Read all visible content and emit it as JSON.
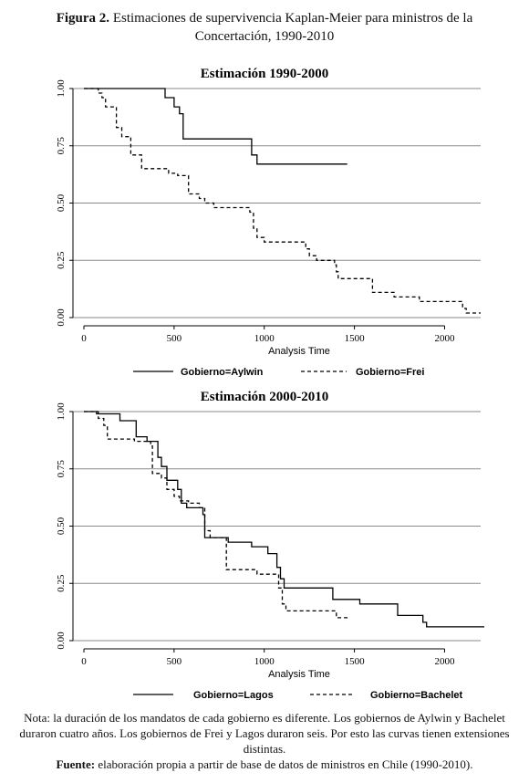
{
  "figure": {
    "label": "Figura 2.",
    "caption": "Estimaciones de supervivencia Kaplan-Meier para ministros de la Concertación, 1990-2010"
  },
  "notes": {
    "nota": "Nota: la duración de los mandatos de cada gobierno es diferente. Los gobiernos de Aylwin y Bachelet duraron cuatro años. Los gobiernos de Frei y Lagos duraron seis. Por esto las curvas tienen extensiones distintas.",
    "fuente_label": "Fuente:",
    "fuente_text": "elaboración propia a partir de base de datos de ministros en Chile (1990-2010)."
  },
  "chart_data": [
    {
      "type": "line",
      "step": true,
      "title": "Estimación 1990-2000",
      "xlabel": "Analysis Time",
      "ylabel": "",
      "xlim": [
        0,
        2200
      ],
      "ylim": [
        0,
        1
      ],
      "xticks": [
        "0",
        "500",
        "1000",
        "1500",
        "2000"
      ],
      "yticks": [
        "0.00",
        "0.25",
        "0.50",
        "0.75",
        "1.00"
      ],
      "grid": true,
      "legend": "bottom",
      "series": [
        {
          "name": "Gobierno=Aylwin",
          "style": "solid",
          "points": [
            [
              0,
              1.0
            ],
            [
              450,
              1.0
            ],
            [
              450,
              0.96
            ],
            [
              500,
              0.96
            ],
            [
              500,
              0.92
            ],
            [
              530,
              0.92
            ],
            [
              530,
              0.89
            ],
            [
              550,
              0.89
            ],
            [
              550,
              0.78
            ],
            [
              930,
              0.78
            ],
            [
              930,
              0.71
            ],
            [
              960,
              0.71
            ],
            [
              960,
              0.67
            ],
            [
              1460,
              0.67
            ]
          ]
        },
        {
          "name": "Gobierno=Frei",
          "style": "dashed",
          "points": [
            [
              0,
              1.0
            ],
            [
              80,
              1.0
            ],
            [
              80,
              0.98
            ],
            [
              100,
              0.98
            ],
            [
              100,
              0.96
            ],
            [
              120,
              0.96
            ],
            [
              120,
              0.92
            ],
            [
              180,
              0.92
            ],
            [
              180,
              0.83
            ],
            [
              210,
              0.83
            ],
            [
              210,
              0.79
            ],
            [
              260,
              0.79
            ],
            [
              260,
              0.71
            ],
            [
              320,
              0.71
            ],
            [
              320,
              0.65
            ],
            [
              470,
              0.65
            ],
            [
              470,
              0.63
            ],
            [
              520,
              0.63
            ],
            [
              520,
              0.62
            ],
            [
              580,
              0.62
            ],
            [
              580,
              0.54
            ],
            [
              640,
              0.54
            ],
            [
              640,
              0.52
            ],
            [
              670,
              0.52
            ],
            [
              670,
              0.5
            ],
            [
              720,
              0.5
            ],
            [
              720,
              0.48
            ],
            [
              920,
              0.48
            ],
            [
              920,
              0.46
            ],
            [
              940,
              0.46
            ],
            [
              940,
              0.39
            ],
            [
              960,
              0.39
            ],
            [
              960,
              0.35
            ],
            [
              1000,
              0.35
            ],
            [
              1000,
              0.33
            ],
            [
              1230,
              0.33
            ],
            [
              1230,
              0.3
            ],
            [
              1250,
              0.3
            ],
            [
              1250,
              0.27
            ],
            [
              1290,
              0.27
            ],
            [
              1290,
              0.25
            ],
            [
              1390,
              0.25
            ],
            [
              1390,
              0.23
            ],
            [
              1400,
              0.23
            ],
            [
              1400,
              0.2
            ],
            [
              1410,
              0.2
            ],
            [
              1410,
              0.17
            ],
            [
              1600,
              0.17
            ],
            [
              1600,
              0.11
            ],
            [
              1720,
              0.11
            ],
            [
              1720,
              0.09
            ],
            [
              1860,
              0.09
            ],
            [
              1860,
              0.07
            ],
            [
              2100,
              0.07
            ],
            [
              2100,
              0.04
            ],
            [
              2120,
              0.04
            ],
            [
              2120,
              0.02
            ],
            [
              2200,
              0.02
            ]
          ]
        }
      ]
    },
    {
      "type": "line",
      "step": true,
      "title": "Estimación 2000-2010",
      "xlabel": "Analysis Time",
      "ylabel": "",
      "xlim": [
        0,
        2200
      ],
      "ylim": [
        0,
        1
      ],
      "xticks": [
        "0",
        "500",
        "1000",
        "1500",
        "2000"
      ],
      "yticks": [
        "0.00",
        "0.25",
        "0.50",
        "0.75",
        "1.00"
      ],
      "grid": true,
      "legend": "bottom",
      "series": [
        {
          "name": "Gobierno=Lagos",
          "style": "solid",
          "points": [
            [
              0,
              1.0
            ],
            [
              70,
              1.0
            ],
            [
              70,
              0.99
            ],
            [
              200,
              0.99
            ],
            [
              200,
              0.96
            ],
            [
              290,
              0.96
            ],
            [
              290,
              0.89
            ],
            [
              350,
              0.89
            ],
            [
              350,
              0.87
            ],
            [
              410,
              0.87
            ],
            [
              410,
              0.8
            ],
            [
              430,
              0.8
            ],
            [
              430,
              0.76
            ],
            [
              460,
              0.76
            ],
            [
              460,
              0.7
            ],
            [
              520,
              0.7
            ],
            [
              520,
              0.66
            ],
            [
              540,
              0.66
            ],
            [
              540,
              0.6
            ],
            [
              570,
              0.6
            ],
            [
              570,
              0.58
            ],
            [
              660,
              0.58
            ],
            [
              660,
              0.55
            ],
            [
              670,
              0.55
            ],
            [
              670,
              0.45
            ],
            [
              800,
              0.45
            ],
            [
              800,
              0.43
            ],
            [
              930,
              0.43
            ],
            [
              930,
              0.41
            ],
            [
              1020,
              0.41
            ],
            [
              1020,
              0.38
            ],
            [
              1070,
              0.38
            ],
            [
              1070,
              0.32
            ],
            [
              1090,
              0.32
            ],
            [
              1090,
              0.27
            ],
            [
              1110,
              0.27
            ],
            [
              1110,
              0.23
            ],
            [
              1380,
              0.23
            ],
            [
              1380,
              0.18
            ],
            [
              1530,
              0.18
            ],
            [
              1530,
              0.16
            ],
            [
              1740,
              0.16
            ],
            [
              1740,
              0.11
            ],
            [
              1880,
              0.11
            ],
            [
              1880,
              0.08
            ],
            [
              1900,
              0.08
            ],
            [
              1900,
              0.06
            ],
            [
              2220,
              0.06
            ]
          ]
        },
        {
          "name": "Gobierno=Bachelet",
          "style": "dashed",
          "points": [
            [
              0,
              1.0
            ],
            [
              80,
              1.0
            ],
            [
              80,
              0.97
            ],
            [
              110,
              0.97
            ],
            [
              110,
              0.94
            ],
            [
              130,
              0.94
            ],
            [
              130,
              0.88
            ],
            [
              280,
              0.88
            ],
            [
              280,
              0.87
            ],
            [
              370,
              0.87
            ],
            [
              370,
              0.85
            ],
            [
              380,
              0.85
            ],
            [
              380,
              0.73
            ],
            [
              430,
              0.73
            ],
            [
              430,
              0.71
            ],
            [
              460,
              0.71
            ],
            [
              460,
              0.66
            ],
            [
              500,
              0.66
            ],
            [
              500,
              0.63
            ],
            [
              530,
              0.63
            ],
            [
              530,
              0.61
            ],
            [
              580,
              0.61
            ],
            [
              580,
              0.6
            ],
            [
              640,
              0.6
            ],
            [
              640,
              0.58
            ],
            [
              670,
              0.58
            ],
            [
              670,
              0.48
            ],
            [
              700,
              0.48
            ],
            [
              700,
              0.45
            ],
            [
              790,
              0.45
            ],
            [
              790,
              0.31
            ],
            [
              960,
              0.31
            ],
            [
              960,
              0.29
            ],
            [
              1080,
              0.29
            ],
            [
              1080,
              0.23
            ],
            [
              1100,
              0.23
            ],
            [
              1100,
              0.16
            ],
            [
              1120,
              0.16
            ],
            [
              1120,
              0.13
            ],
            [
              1400,
              0.13
            ],
            [
              1400,
              0.1
            ],
            [
              1470,
              0.1
            ]
          ]
        }
      ]
    }
  ]
}
